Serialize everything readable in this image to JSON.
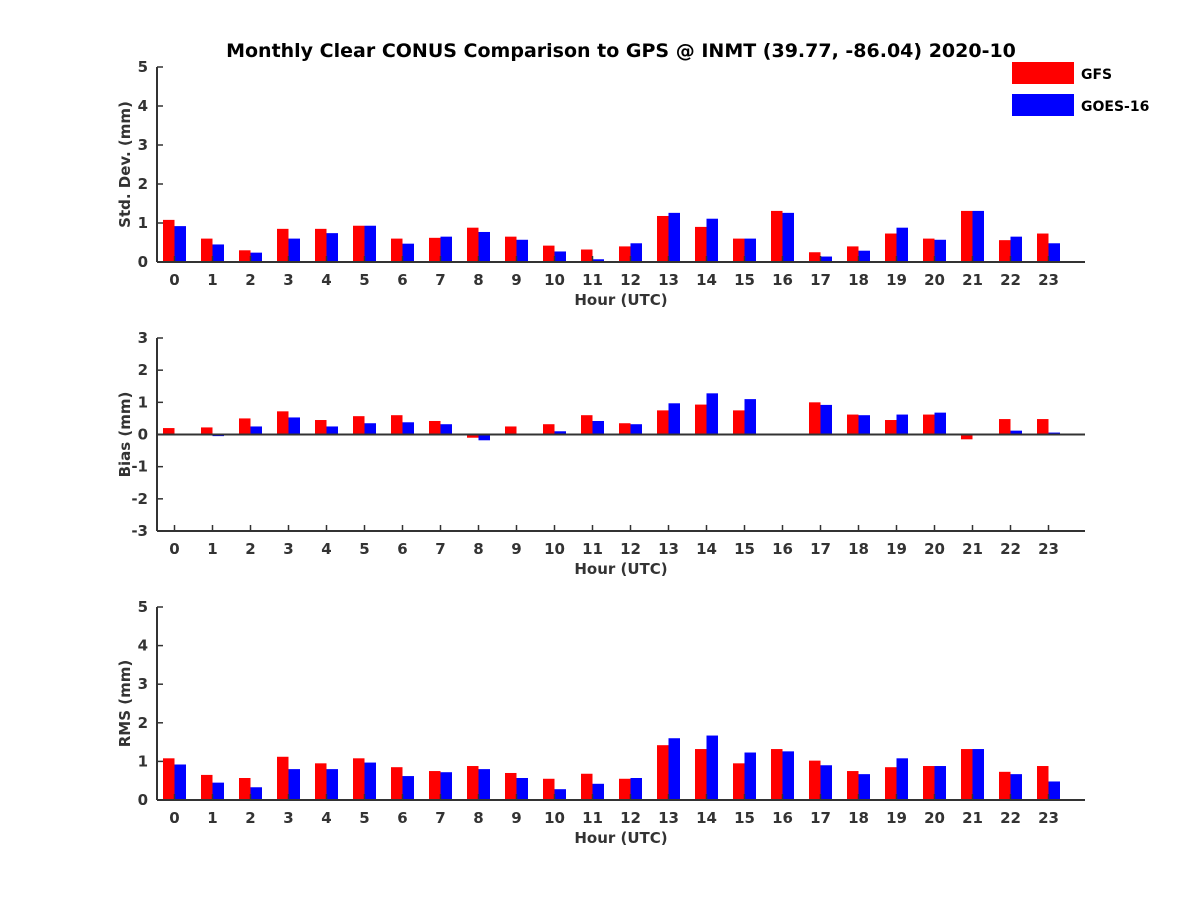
{
  "title": "Monthly Clear CONUS Comparison to GPS @ INMT (39.77, -86.04) 2020-10",
  "legend": {
    "placement": "top-right",
    "entries": [
      {
        "name": "GFS",
        "color": "#ff0000"
      },
      {
        "name": "GOES-16",
        "color": "#0000ff"
      }
    ]
  },
  "chart_data": [
    {
      "type": "bar",
      "title": "",
      "xlabel": "Hour (UTC)",
      "ylabel": "Std. Dev. (mm)",
      "ylim": [
        0,
        5
      ],
      "yticks": [
        0,
        1,
        2,
        3,
        4,
        5
      ],
      "categories": [
        "0",
        "1",
        "2",
        "3",
        "4",
        "5",
        "6",
        "7",
        "8",
        "9",
        "10",
        "11",
        "12",
        "13",
        "14",
        "15",
        "16",
        "17",
        "18",
        "19",
        "20",
        "21",
        "22",
        "23"
      ],
      "series": [
        {
          "name": "GFS",
          "color": "#ff0000",
          "values": [
            1.08,
            0.6,
            0.3,
            0.85,
            0.85,
            0.93,
            0.6,
            0.62,
            0.88,
            0.65,
            0.42,
            0.32,
            0.4,
            1.18,
            0.9,
            0.6,
            1.31,
            0.25,
            0.4,
            0.73,
            0.6,
            1.31,
            0.56,
            0.73
          ]
        },
        {
          "name": "GOES-16",
          "color": "#0000ff",
          "values": [
            0.92,
            0.45,
            0.24,
            0.6,
            0.74,
            0.93,
            0.47,
            0.65,
            0.77,
            0.57,
            0.27,
            0.07,
            0.48,
            1.26,
            1.11,
            0.6,
            1.26,
            0.14,
            0.29,
            0.88,
            0.57,
            1.31,
            0.65,
            0.48
          ]
        }
      ]
    },
    {
      "type": "bar",
      "title": "",
      "xlabel": "Hour (UTC)",
      "ylabel": "Bias (mm)",
      "ylim": [
        -3,
        3
      ],
      "yticks": [
        -3,
        -2,
        -1,
        0,
        1,
        2,
        3
      ],
      "categories": [
        "0",
        "1",
        "2",
        "3",
        "4",
        "5",
        "6",
        "7",
        "8",
        "9",
        "10",
        "11",
        "12",
        "13",
        "14",
        "15",
        "16",
        "17",
        "18",
        "19",
        "20",
        "21",
        "22",
        "23"
      ],
      "series": [
        {
          "name": "GFS",
          "color": "#ff0000",
          "values": [
            0.2,
            0.22,
            0.5,
            0.72,
            0.45,
            0.57,
            0.6,
            0.42,
            -0.1,
            0.25,
            0.32,
            0.6,
            0.35,
            0.75,
            0.93,
            0.75,
            0.0,
            1.0,
            0.62,
            0.45,
            0.62,
            -0.15,
            0.48,
            0.48
          ]
        },
        {
          "name": "GOES-16",
          "color": "#0000ff",
          "values": [
            0.02,
            -0.05,
            0.25,
            0.53,
            0.25,
            0.35,
            0.38,
            0.32,
            -0.18,
            0.0,
            0.1,
            0.42,
            0.32,
            0.97,
            1.28,
            1.1,
            0.0,
            0.92,
            0.6,
            0.62,
            0.68,
            0.0,
            0.12,
            0.06
          ]
        }
      ]
    },
    {
      "type": "bar",
      "title": "",
      "xlabel": "Hour (UTC)",
      "ylabel": "RMS (mm)",
      "ylim": [
        0,
        5
      ],
      "yticks": [
        0,
        1,
        2,
        3,
        4,
        5
      ],
      "categories": [
        "0",
        "1",
        "2",
        "3",
        "4",
        "5",
        "6",
        "7",
        "8",
        "9",
        "10",
        "11",
        "12",
        "13",
        "14",
        "15",
        "16",
        "17",
        "18",
        "19",
        "20",
        "21",
        "22",
        "23"
      ],
      "series": [
        {
          "name": "GFS",
          "color": "#ff0000",
          "values": [
            1.08,
            0.65,
            0.57,
            1.12,
            0.95,
            1.08,
            0.85,
            0.75,
            0.88,
            0.7,
            0.55,
            0.68,
            0.55,
            1.42,
            1.32,
            0.95,
            1.32,
            1.02,
            0.75,
            0.85,
            0.88,
            1.32,
            0.73,
            0.88
          ]
        },
        {
          "name": "GOES-16",
          "color": "#0000ff",
          "values": [
            0.92,
            0.45,
            0.33,
            0.8,
            0.8,
            0.97,
            0.62,
            0.72,
            0.8,
            0.57,
            0.28,
            0.42,
            0.57,
            1.6,
            1.67,
            1.23,
            1.26,
            0.9,
            0.67,
            1.08,
            0.88,
            1.32,
            0.67,
            0.48
          ]
        }
      ]
    }
  ]
}
